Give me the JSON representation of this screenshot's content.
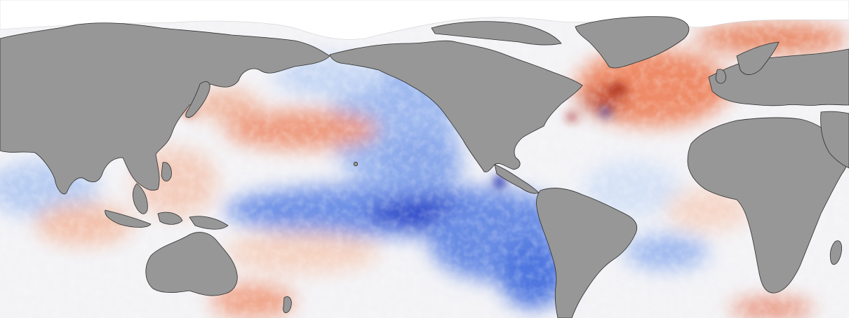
{
  "map": {
    "type": "sea-surface-temperature-anomaly",
    "projection": "equirectangular-pacific-centered",
    "colors": {
      "land": "#979797",
      "coastline": "#2e2e2e",
      "no_data": "#ffffff",
      "warm_strong": "#b32a10",
      "warm": "#e8795a",
      "warm_light": "#f6c7b4",
      "neutral": "#f7f7f7",
      "cool_light": "#c6d8f5",
      "cool": "#5f86e3",
      "cool_strong": "#1b2fb5"
    },
    "land_masses": [
      "eurasia",
      "north-america",
      "south-america",
      "africa",
      "australia",
      "greenland",
      "japan",
      "indonesia"
    ]
  }
}
